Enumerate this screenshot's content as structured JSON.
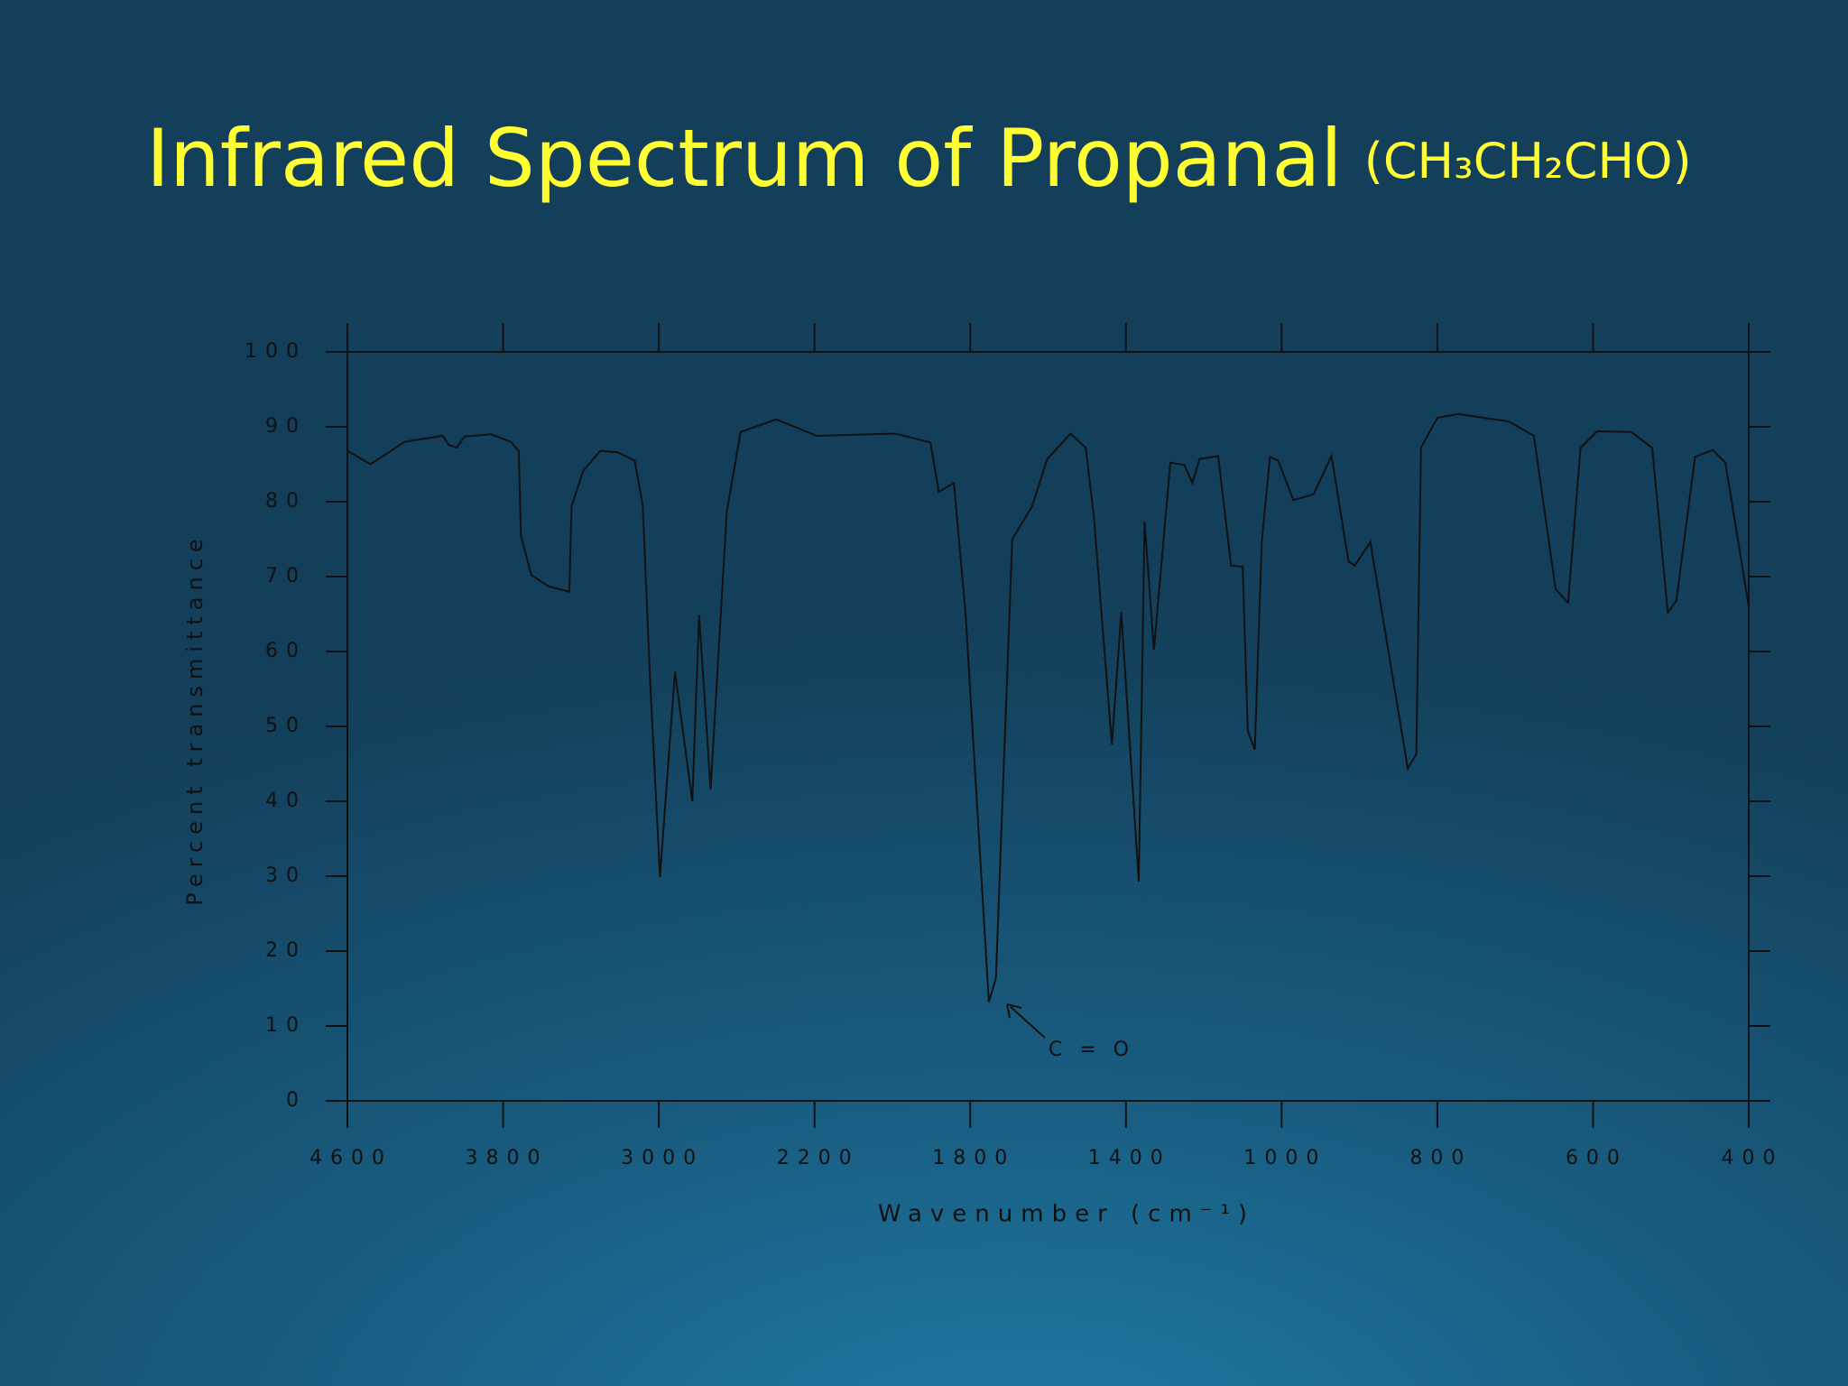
{
  "chart_data": {
    "type": "line",
    "title": "Infrared Spectrum of Propanal",
    "subtitle": "(CH₃CH₂CHO)",
    "x_label": "Wavenumber (cm⁻¹)",
    "y_label": "Percent transmittance",
    "annotation": "C = O",
    "color": "#111111",
    "xlim": [
      4600,
      400
    ],
    "xticks": [
      4600,
      3800,
      3000,
      2200,
      1800,
      1400,
      1000,
      800,
      600,
      400
    ],
    "ylim": [
      0,
      100
    ],
    "yticks": [
      0,
      10,
      20,
      30,
      40,
      50,
      60,
      70,
      80,
      90,
      100
    ],
    "x": [
      4600,
      4482,
      4305,
      4110,
      4080,
      4039,
      3998,
      3862,
      3761,
      3720,
      3708,
      3655,
      3567,
      3460,
      3448,
      3389,
      3301,
      3212,
      3124,
      3082,
      3047,
      2994,
      2917,
      2828,
      2793,
      2734,
      2651,
      2580,
      2397,
      2194,
      1992,
      1902,
      1881,
      1842,
      1812,
      1752,
      1734,
      1692,
      1641,
      1602,
      1542,
      1503,
      1482,
      1436,
      1412,
      1367,
      1352,
      1328,
      1286,
      1250,
      1229,
      1211,
      1163,
      1130,
      1100,
      1087,
      1069,
      1051,
      1030,
      1009,
      985,
      959,
      936,
      914,
      906,
      886,
      838,
      827,
      821,
      800,
      773,
      708,
      676,
      648,
      632,
      616,
      595,
      551,
      524,
      504,
      493,
      469,
      446,
      430,
      400
    ],
    "values": [
      86.8,
      85.0,
      88.0,
      88.8,
      87.6,
      87.2,
      88.7,
      89.0,
      88.0,
      86.8,
      75.4,
      70.2,
      68.7,
      68.0,
      79.4,
      84.1,
      86.8,
      86.6,
      85.5,
      79.4,
      57.3,
      29.9,
      57.3,
      40.0,
      64.9,
      41.6,
      78.6,
      89.3,
      91.0,
      88.8,
      89.1,
      87.9,
      81.3,
      82.5,
      65.2,
      13.2,
      16.4,
      75.0,
      79.4,
      85.7,
      89.1,
      87.2,
      77.8,
      47.6,
      65.2,
      29.3,
      77.3,
      60.2,
      85.2,
      84.9,
      82.5,
      85.7,
      86.1,
      71.5,
      71.3,
      49.4,
      46.9,
      74.6,
      86.0,
      85.5,
      80.2,
      81.0,
      86.1,
      72.0,
      71.5,
      74.6,
      44.4,
      46.3,
      87.2,
      91.2,
      91.7,
      90.7,
      88.8,
      68.3,
      66.5,
      87.2,
      89.4,
      89.3,
      87.2,
      65.2,
      66.8,
      86.0,
      86.9,
      85.2,
      66.0
    ]
  }
}
